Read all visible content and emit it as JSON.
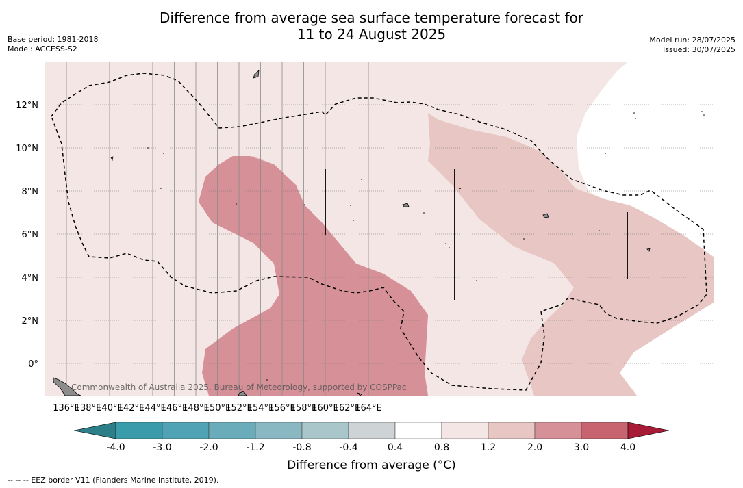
{
  "header": {
    "title_line1": "Difference from average sea surface temperature forecast for",
    "title_line2": "11 to 24 August 2025",
    "base_period": "Base period: 1981-2018",
    "model": "Model: ACCESS-S2",
    "model_run": "Model run: 28/07/2025",
    "issued": "Issued: 30/07/2025"
  },
  "map": {
    "lon_labels": [
      "136°E",
      "138°E",
      "140°E",
      "142°E",
      "144°E",
      "146°E",
      "148°E",
      "150°E",
      "152°E",
      "154°E",
      "156°E",
      "158°E",
      "160°E",
      "162°E",
      "164°E"
    ],
    "lat_labels": [
      "12°N",
      "10°N",
      "8°N",
      "6°N",
      "4°N",
      "2°N",
      "0°"
    ],
    "copyright": "Commonwealth of Australia 2025, Bureau of Meteorology, supported by COSPPac",
    "colors": {
      "anomaly_0_4_to_0_8": "#f4e6e5",
      "anomaly_0_8_to_1_2": "#e7c6c3",
      "anomaly_1_2_to_2_0": "#d69098",
      "land": "#8c8c8c",
      "eez_border": "#000000"
    }
  },
  "colorbar": {
    "tick_labels": [
      "-4.0",
      "-3.0",
      "-2.0",
      "-1.2",
      "-0.8",
      "-0.4",
      "0.4",
      "0.8",
      "1.2",
      "2.0",
      "3.0",
      "4.0"
    ],
    "segment_colors": [
      "#3a9cab",
      "#4fa3b4",
      "#6aacba",
      "#89b8c3",
      "#a9c7cb",
      "#ced3d5",
      "#ffffff",
      "#f4e6e5",
      "#e7c6c3",
      "#d69098",
      "#c7646f",
      "#b9424f"
    ],
    "extend_low_color": "#2c7f88",
    "extend_high_color": "#a81b36",
    "title": "Difference from average ($^\\circ$C)",
    "title_display": "Difference from average (°C)"
  },
  "footnote": "--  --  -- EEZ border V11 (Flanders Marine Institute, 2019)."
}
